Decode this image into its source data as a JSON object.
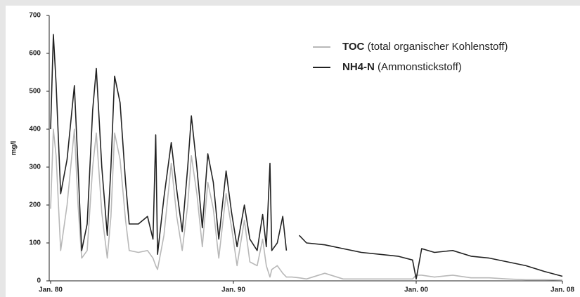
{
  "chart_data": {
    "type": "line",
    "y_label": "mg/l",
    "x": [
      1980.0,
      1980.15,
      1980.3,
      1980.55,
      1980.9,
      1981.3,
      1981.5,
      1981.7,
      1982.0,
      1982.3,
      1982.5,
      1982.8,
      1983.1,
      1983.3,
      1983.5,
      1983.8,
      1984.1,
      1984.3,
      1984.8,
      1985.3,
      1985.6,
      1985.75,
      1985.85,
      1986.2,
      1986.6,
      1986.9,
      1987.2,
      1987.5,
      1987.7,
      1988.0,
      1988.3,
      1988.6,
      1988.9,
      1989.2,
      1989.6,
      1989.9,
      1990.2,
      1990.6,
      1990.9,
      1991.3,
      1991.6,
      1991.8,
      1992.0,
      1992.1,
      1992.4,
      1992.7,
      1992.9,
      1993.2,
      1993.6,
      1994.0,
      1995.0,
      1996.0,
      1997.0,
      1998.0,
      1999.0,
      1999.8,
      2000.0,
      2000.3,
      2001.0,
      2002.0,
      2003.0,
      2004.0,
      2005.0,
      2006.0,
      2007.0,
      2008.0
    ],
    "series": [
      {
        "name": "TOC",
        "detail": "(total organischer Kohlenstoff)",
        "color": "#b8b8b8",
        "values": [
          190,
          400,
          330,
          80,
          200,
          400,
          200,
          60,
          80,
          300,
          390,
          180,
          60,
          170,
          390,
          320,
          160,
          80,
          75,
          80,
          60,
          40,
          30,
          120,
          310,
          170,
          80,
          200,
          330,
          230,
          90,
          260,
          190,
          60,
          230,
          140,
          40,
          160,
          50,
          40,
          110,
          40,
          10,
          30,
          40,
          20,
          10,
          10,
          8,
          5,
          20,
          5,
          5,
          5,
          5,
          5,
          15,
          15,
          10,
          15,
          8,
          8,
          5,
          3,
          3,
          2
        ]
      },
      {
        "name": "NH4-N",
        "detail": "(Ammonstickstoff)",
        "color": "#222222",
        "values": [
          400,
          650,
          520,
          230,
          320,
          515,
          300,
          80,
          150,
          450,
          560,
          300,
          120,
          300,
          540,
          470,
          260,
          150,
          150,
          170,
          110,
          385,
          70,
          220,
          365,
          240,
          130,
          300,
          435,
          300,
          140,
          335,
          260,
          110,
          290,
          180,
          90,
          200,
          110,
          80,
          175,
          90,
          310,
          80,
          100,
          170,
          80,
          null,
          120,
          100,
          95,
          85,
          75,
          70,
          65,
          55,
          5,
          85,
          75,
          80,
          65,
          60,
          50,
          40,
          25,
          12
        ]
      }
    ],
    "xlim": [
      1980,
      2008
    ],
    "xticks": [
      {
        "value": 1980,
        "label": "Jan. 80"
      },
      {
        "value": 1990,
        "label": "Jan. 90"
      },
      {
        "value": 2000,
        "label": "Jan. 00"
      },
      {
        "value": 2008,
        "label": "Jan. 08"
      }
    ],
    "ylim": [
      0,
      700
    ],
    "yticks": [
      0,
      100,
      200,
      300,
      400,
      500,
      600,
      700
    ]
  }
}
